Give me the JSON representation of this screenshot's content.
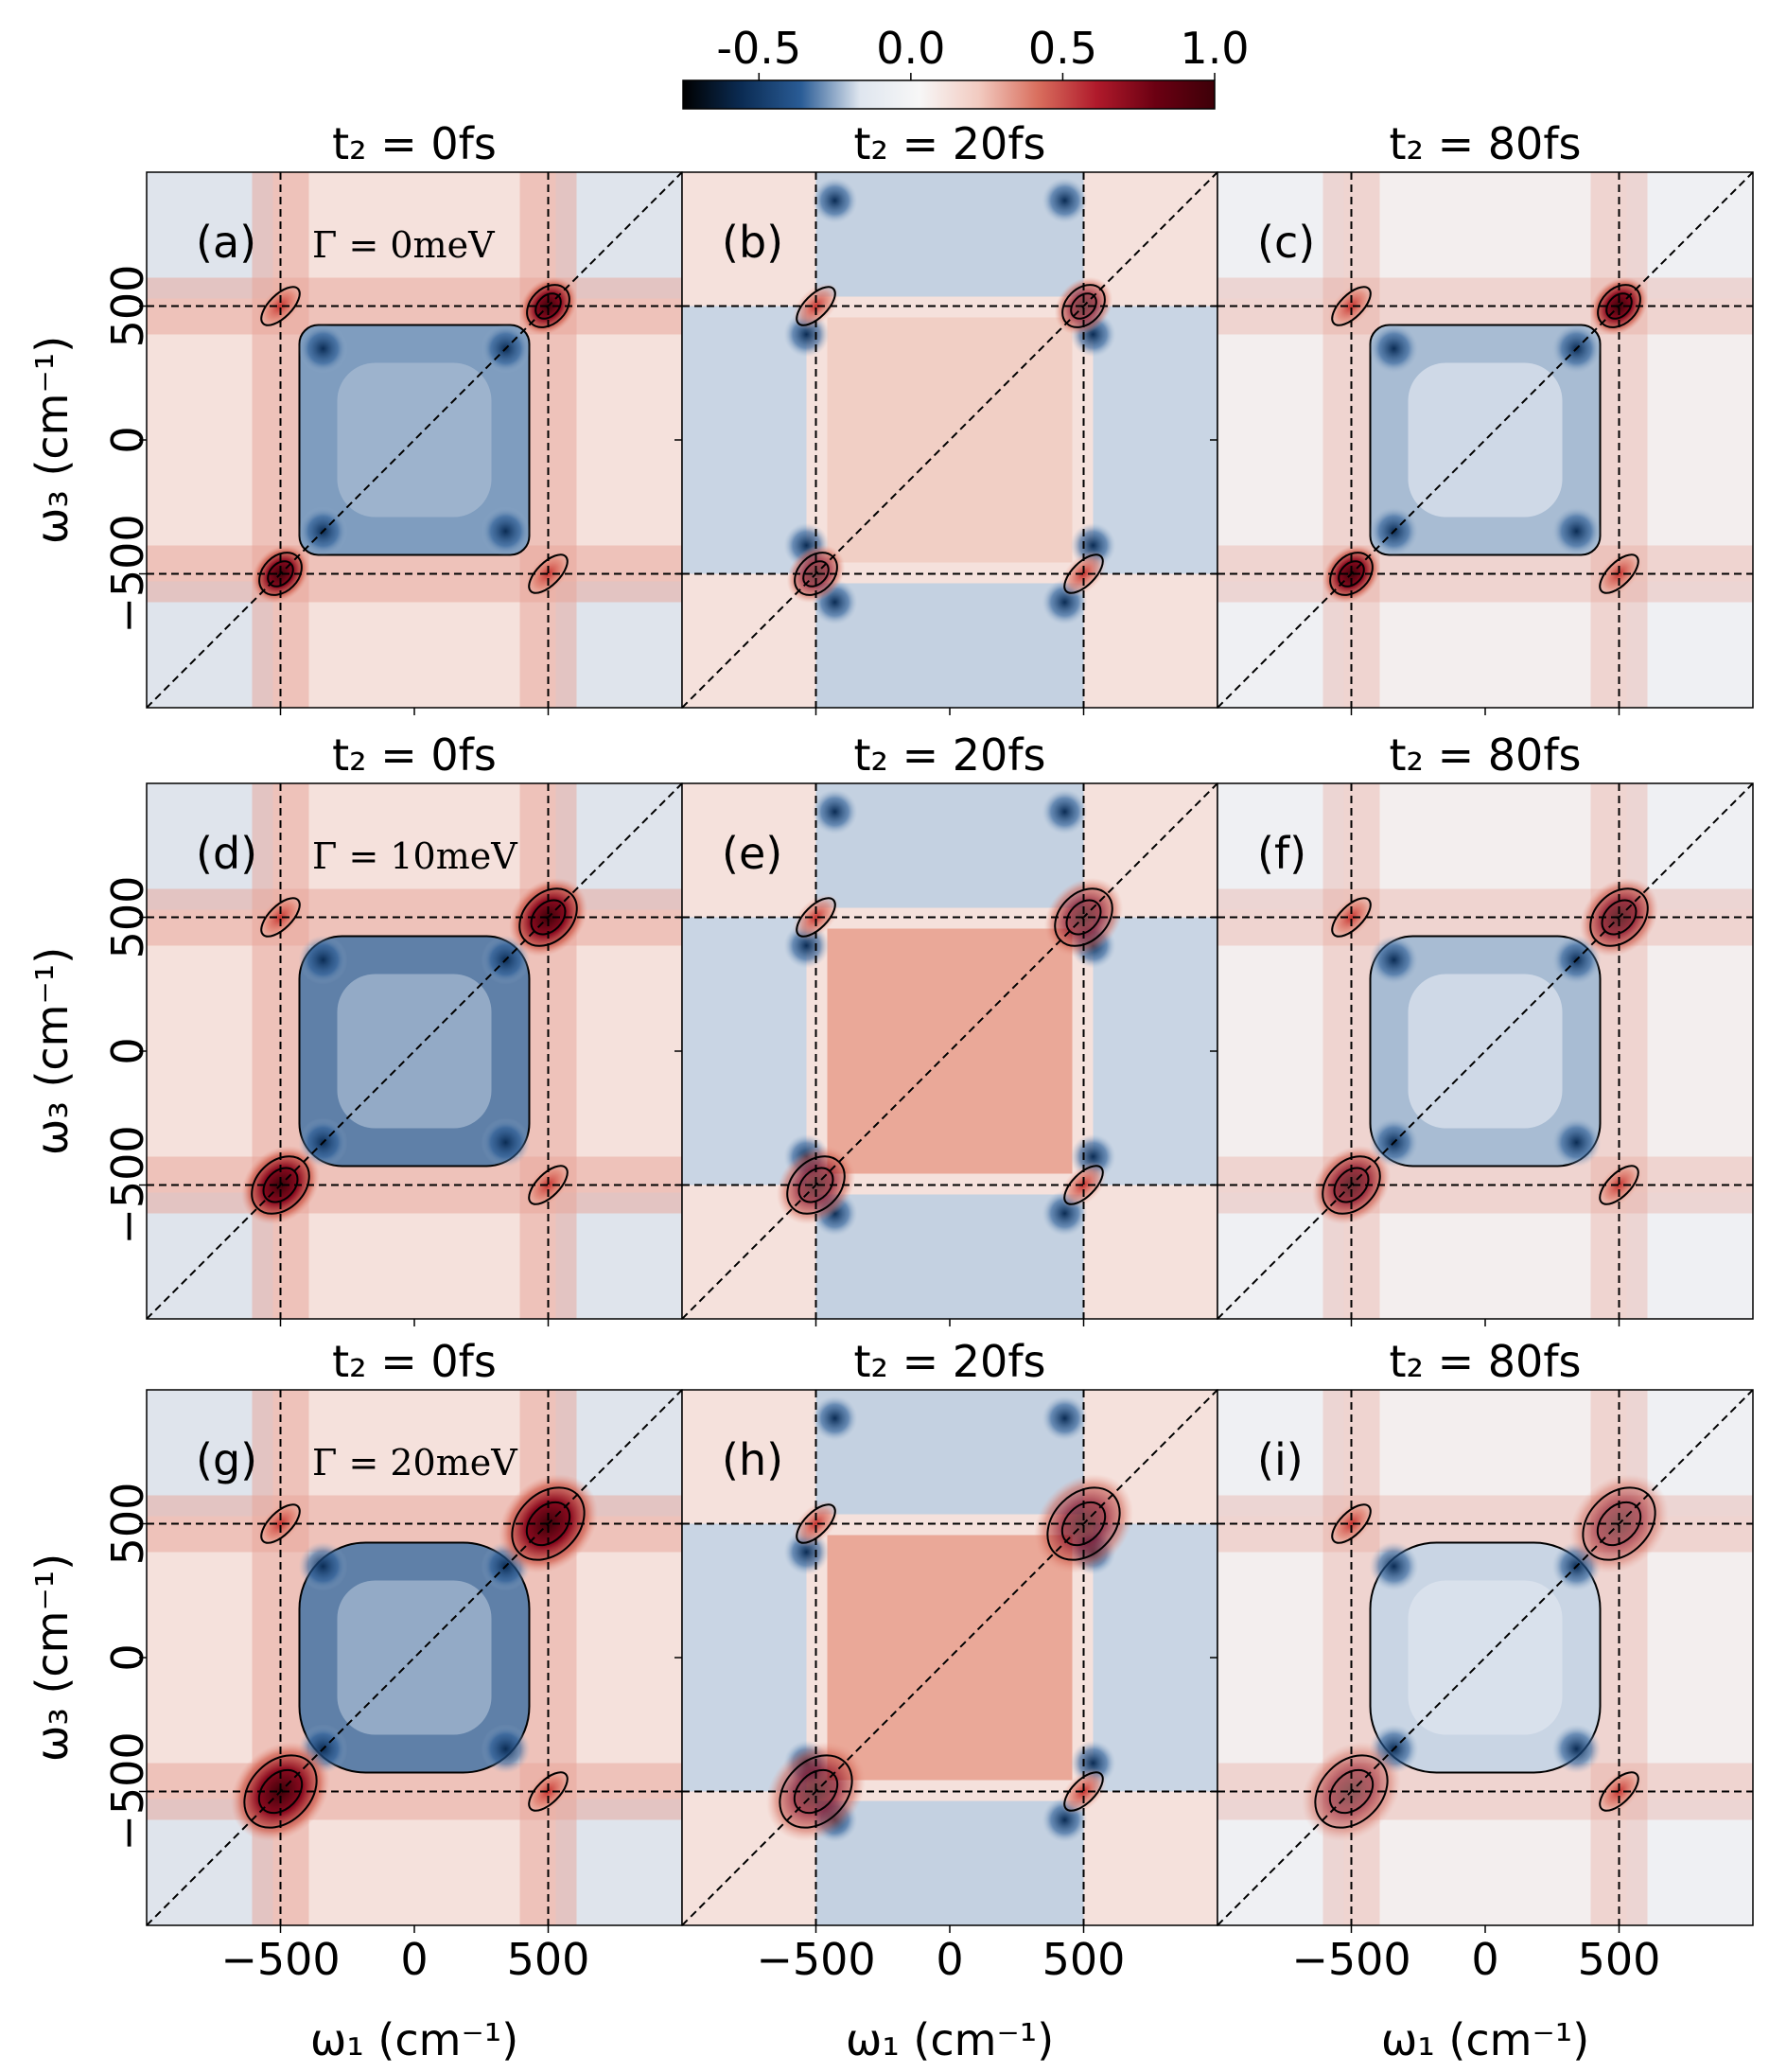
{
  "colorbar": {
    "ticks": [
      {
        "value": -0.5,
        "label": "-0.5"
      },
      {
        "value": 0.0,
        "label": "0.0"
      },
      {
        "value": 0.5,
        "label": "0.5"
      },
      {
        "value": 1.0,
        "label": "1.0"
      }
    ],
    "vmin": -0.75,
    "vmax": 1.0,
    "colors": [
      "#000000",
      "#0b2c54",
      "#2a5c96",
      "#dfe6ef",
      "#f7f7f7",
      "#f2cbc1",
      "#d96f5e",
      "#b01a2b",
      "#6b0012",
      "#3d0008"
    ]
  },
  "chart_data": [
    {
      "type": "heatmap",
      "panel": "(a)",
      "title": "t₂ = 0fs",
      "annotation": "Γ = 0meV",
      "t2_fs": 0,
      "gamma_meV": 0
    },
    {
      "type": "heatmap",
      "panel": "(b)",
      "title": "t₂ = 20fs",
      "annotation": "",
      "t2_fs": 20,
      "gamma_meV": 0
    },
    {
      "type": "heatmap",
      "panel": "(c)",
      "title": "t₂ = 80fs",
      "annotation": "",
      "t2_fs": 80,
      "gamma_meV": 0
    },
    {
      "type": "heatmap",
      "panel": "(d)",
      "title": "t₂ = 0fs",
      "annotation": "Γ = 10meV",
      "t2_fs": 0,
      "gamma_meV": 10
    },
    {
      "type": "heatmap",
      "panel": "(e)",
      "title": "t₂ = 20fs",
      "annotation": "",
      "t2_fs": 20,
      "gamma_meV": 10
    },
    {
      "type": "heatmap",
      "panel": "(f)",
      "title": "t₂ = 80fs",
      "annotation": "",
      "t2_fs": 80,
      "gamma_meV": 10
    },
    {
      "type": "heatmap",
      "panel": "(g)",
      "title": "t₂ = 0fs",
      "annotation": "Γ = 20meV",
      "t2_fs": 0,
      "gamma_meV": 20
    },
    {
      "type": "heatmap",
      "panel": "(h)",
      "title": "t₂ = 20fs",
      "annotation": "",
      "t2_fs": 20,
      "gamma_meV": 20
    },
    {
      "type": "heatmap",
      "panel": "(i)",
      "title": "t₂ = 80fs",
      "annotation": "",
      "t2_fs": 80,
      "gamma_meV": 20
    }
  ],
  "axes": {
    "xlabel": "ω₁ (cm⁻¹)",
    "ylabel": "ω₃ (cm⁻¹)",
    "xlim": [
      -1000,
      1000
    ],
    "ylim": [
      -1000,
      1000
    ],
    "xticks": [
      {
        "value": -500,
        "label": "−500"
      },
      {
        "value": 0,
        "label": "0"
      },
      {
        "value": 500,
        "label": "500"
      }
    ],
    "yticks": [
      {
        "value": 500,
        "label": "500"
      },
      {
        "value": 0,
        "label": "0"
      },
      {
        "value": -500,
        "label": "−500"
      }
    ],
    "guide_lines": [
      -500,
      500
    ],
    "diagonal": true
  }
}
